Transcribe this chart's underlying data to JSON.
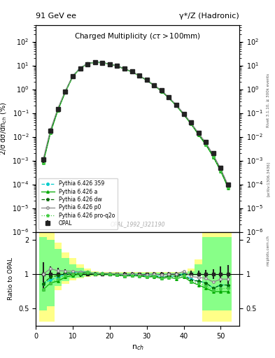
{
  "title_left": "91 GeV ee",
  "title_right": "γ*/Z (Hadronic)",
  "ylabel_main": "2/σ dσ/dn$_{ch}$ (%)",
  "ylabel_ratio": "Ratio to OPAL",
  "xlabel": "n$_{ch}$",
  "plot_title": "Charged Multiplicity",
  "plot_subtitle": "(cτ > 100mm)",
  "watermark": "OPAL_1992_I321190",
  "rivet_text": "Rivet 3.1.10, ≥ 300k events",
  "arxiv_text": "[arXiv:1306.3436]",
  "mcplots_text": "mcplots.cern.ch",
  "nch": [
    2,
    4,
    6,
    8,
    10,
    12,
    14,
    16,
    18,
    20,
    22,
    24,
    26,
    28,
    30,
    32,
    34,
    36,
    38,
    40,
    42,
    44,
    46,
    48,
    50,
    52
  ],
  "opal_y": [
    0.0011,
    0.018,
    0.15,
    0.8,
    3.5,
    7.5,
    11.5,
    13.5,
    13.0,
    11.5,
    9.5,
    7.5,
    5.5,
    3.8,
    2.5,
    1.5,
    0.9,
    0.45,
    0.22,
    0.09,
    0.04,
    0.015,
    0.006,
    0.002,
    0.0005,
    0.0001
  ],
  "opal_yerr": [
    0.0003,
    0.003,
    0.02,
    0.08,
    0.2,
    0.4,
    0.5,
    0.5,
    0.5,
    0.4,
    0.3,
    0.3,
    0.2,
    0.1,
    0.08,
    0.06,
    0.04,
    0.02,
    0.01,
    0.006,
    0.003,
    0.001,
    0.0005,
    0.0002,
    8e-05,
    2e-05
  ],
  "py359_y": [
    0.0009,
    0.016,
    0.14,
    0.8,
    3.6,
    7.8,
    12.0,
    13.5,
    13.2,
    11.5,
    9.4,
    7.3,
    5.4,
    3.7,
    2.4,
    1.45,
    0.85,
    0.43,
    0.21,
    0.09,
    0.036,
    0.013,
    0.005,
    0.0015,
    0.0004,
    8e-05
  ],
  "pya_y": [
    0.0008,
    0.015,
    0.13,
    0.75,
    3.4,
    7.5,
    11.8,
    13.4,
    13.1,
    11.4,
    9.3,
    7.2,
    5.3,
    3.65,
    2.35,
    1.42,
    0.82,
    0.42,
    0.2,
    0.085,
    0.034,
    0.012,
    0.0045,
    0.0014,
    0.00035,
    7e-05
  ],
  "pydw_y": [
    0.0009,
    0.017,
    0.145,
    0.82,
    3.55,
    7.6,
    11.9,
    13.4,
    13.1,
    11.4,
    9.3,
    7.2,
    5.35,
    3.68,
    2.38,
    1.44,
    0.84,
    0.43,
    0.21,
    0.088,
    0.035,
    0.013,
    0.005,
    0.0015,
    0.0004,
    8e-05
  ],
  "pyp0_y": [
    0.0011,
    0.02,
    0.16,
    0.85,
    3.7,
    7.8,
    12.0,
    13.5,
    13.2,
    11.6,
    9.5,
    7.4,
    5.5,
    3.75,
    2.45,
    1.5,
    0.88,
    0.45,
    0.22,
    0.095,
    0.038,
    0.014,
    0.0055,
    0.0017,
    0.00045,
    9e-05
  ],
  "pyproq2o_y": [
    0.0008,
    0.015,
    0.135,
    0.78,
    3.5,
    7.6,
    11.9,
    13.4,
    13.1,
    11.4,
    9.3,
    7.2,
    5.3,
    3.65,
    2.36,
    1.43,
    0.83,
    0.42,
    0.205,
    0.087,
    0.034,
    0.0125,
    0.0047,
    0.00145,
    0.00037,
    7.5e-05
  ],
  "band_yellow_lo": [
    0.38,
    0.38,
    0.72,
    0.82,
    0.88,
    0.91,
    0.94,
    0.96,
    0.97,
    0.97,
    0.97,
    0.97,
    0.97,
    0.97,
    0.97,
    0.97,
    0.97,
    0.97,
    0.97,
    0.97,
    0.97,
    0.97,
    0.38,
    0.38,
    0.38,
    0.38
  ],
  "band_yellow_hi": [
    2.3,
    2.3,
    1.9,
    1.55,
    1.38,
    1.22,
    1.12,
    1.06,
    1.04,
    1.04,
    1.04,
    1.04,
    1.04,
    1.04,
    1.04,
    1.04,
    1.04,
    1.04,
    1.04,
    1.04,
    1.12,
    1.35,
    2.3,
    2.3,
    2.3,
    2.3
  ],
  "band_green_lo": [
    0.48,
    0.52,
    0.78,
    0.86,
    0.91,
    0.93,
    0.95,
    0.965,
    0.972,
    0.972,
    0.972,
    0.972,
    0.972,
    0.972,
    0.972,
    0.972,
    0.972,
    0.972,
    0.972,
    0.972,
    0.972,
    0.972,
    0.48,
    0.48,
    0.48,
    0.48
  ],
  "band_green_hi": [
    2.1,
    2.0,
    1.65,
    1.38,
    1.22,
    1.14,
    1.07,
    1.035,
    1.022,
    1.022,
    1.022,
    1.022,
    1.022,
    1.022,
    1.022,
    1.022,
    1.022,
    1.022,
    1.022,
    1.022,
    1.055,
    1.22,
    2.1,
    2.1,
    2.1,
    2.1
  ],
  "color_opal": "#222222",
  "color_py359": "#00cccc",
  "color_pya": "#00aa00",
  "color_pydw": "#006600",
  "color_pyp0": "#888888",
  "color_pyproq2o": "#44cc44",
  "color_yellow": "#ffff88",
  "color_green": "#88ff88",
  "ylim_main": [
    1e-06,
    500
  ],
  "ylim_ratio": [
    0.35,
    2.35
  ],
  "xlim": [
    0,
    55
  ]
}
